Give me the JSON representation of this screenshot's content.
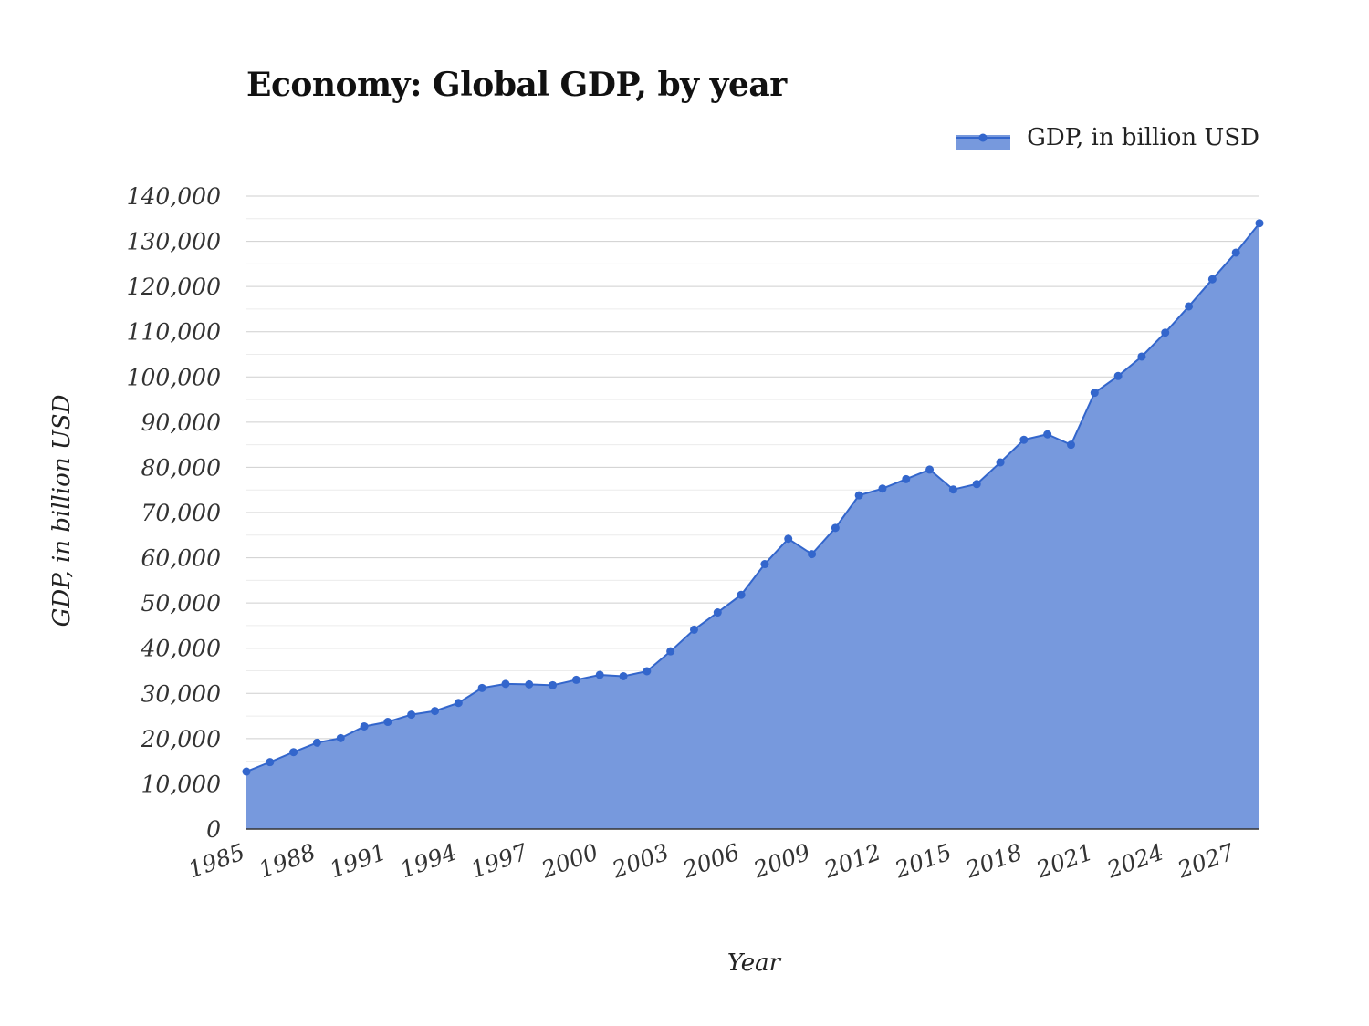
{
  "chart_data": {
    "type": "area",
    "title": "Economy: Global GDP, by year",
    "xlabel": "Year",
    "ylabel": "GDP, in billion USD",
    "ylim": [
      0,
      140000
    ],
    "y_ticks": [
      "0",
      "10,000",
      "20,000",
      "30,000",
      "40,000",
      "50,000",
      "60,000",
      "70,000",
      "80,000",
      "90,000",
      "100,000",
      "110,000",
      "120,000",
      "130,000",
      "140,000"
    ],
    "x_ticks": [
      "1985",
      "1988",
      "1991",
      "1994",
      "1997",
      "2000",
      "2003",
      "2006",
      "2009",
      "2012",
      "2015",
      "2018",
      "2021",
      "2024",
      "2027"
    ],
    "grid": true,
    "legend_position": "top-right",
    "colors": {
      "fill": "#7799dd",
      "line": "#3366cc",
      "grid": "#cccccc"
    },
    "x": [
      1985,
      1986,
      1987,
      1988,
      1989,
      1990,
      1991,
      1992,
      1993,
      1994,
      1995,
      1996,
      1997,
      1998,
      1999,
      2000,
      2001,
      2002,
      2003,
      2004,
      2005,
      2006,
      2007,
      2008,
      2009,
      2010,
      2011,
      2012,
      2013,
      2014,
      2015,
      2016,
      2017,
      2018,
      2019,
      2020,
      2021,
      2022,
      2023,
      2024,
      2025,
      2026,
      2027,
      2028
    ],
    "series": [
      {
        "name": "GDP, in billion USD",
        "values": [
          12700,
          14800,
          17000,
          19100,
          20100,
          22700,
          23700,
          25300,
          26100,
          27900,
          31200,
          32100,
          32000,
          31800,
          33000,
          34100,
          33800,
          34900,
          39300,
          44100,
          47900,
          51800,
          58600,
          64200,
          60800,
          66600,
          73800,
          75300,
          77400,
          79500,
          75100,
          76300,
          81100,
          86100,
          87300,
          85000,
          96500,
          100200,
          104500,
          109800,
          115600,
          121600,
          127500,
          134000
        ]
      }
    ]
  }
}
